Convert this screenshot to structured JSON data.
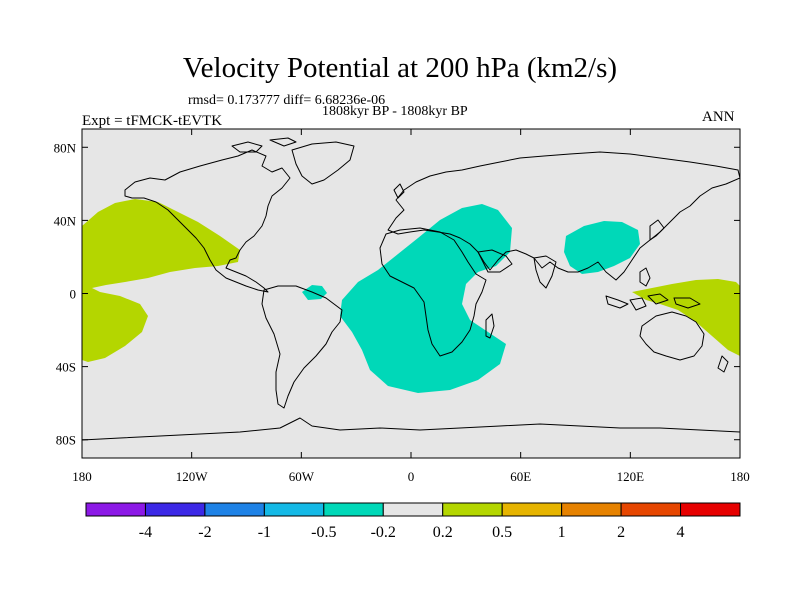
{
  "title": "Velocity Potential at 200 hPa (km2/s)",
  "stats": "rmsd= 0.173777 diff= 6.68236e-06",
  "period": "1808kyr BP - 1808kyr BP",
  "experiment": "Expt = tFMCK-tEVTK",
  "season": "ANN",
  "map": {
    "projection": "cylindrical-equidistant",
    "lon_range": [
      -180,
      180
    ],
    "lat_range": [
      -90,
      90
    ],
    "background_color": "#e6e6e6",
    "coastline_color": "#000000",
    "x_ticks": [
      {
        "lon": -180,
        "label": "180"
      },
      {
        "lon": -120,
        "label": "120W"
      },
      {
        "lon": -60,
        "label": "60W"
      },
      {
        "lon": 0,
        "label": "0"
      },
      {
        "lon": 60,
        "label": "60E"
      },
      {
        "lon": 120,
        "label": "120E"
      },
      {
        "lon": 180,
        "label": "180"
      }
    ],
    "y_ticks": [
      {
        "lat": 80,
        "label": "80N"
      },
      {
        "lat": 40,
        "label": "40N"
      },
      {
        "lat": 0,
        "label": "0"
      },
      {
        "lat": -40,
        "label": "40S"
      },
      {
        "lat": -80,
        "label": "80S"
      }
    ],
    "shaded_regions": [
      {
        "name": "central-pacific-positive",
        "bin": "0.2 to 0.5",
        "color": "#b4d600"
      },
      {
        "name": "atlantic-africa-negative",
        "bin": "-0.5 to -0.2",
        "color": "#00d8b8"
      },
      {
        "name": "east-asia-negative",
        "bin": "-0.5 to -0.2",
        "color": "#00d8b8"
      },
      {
        "name": "caribbean-negative",
        "bin": "-0.5 to -0.2",
        "color": "#00d8b8"
      },
      {
        "name": "western-pacific-positive",
        "bin": "0.2 to 0.5",
        "color": "#b4d600"
      }
    ]
  },
  "colorbar": {
    "colors": [
      "#8c19e6",
      "#3c28e6",
      "#1e82e6",
      "#14b9e6",
      "#00d8b8",
      "#e6e6e6",
      "#b4d600",
      "#e6b400",
      "#e68200",
      "#e64600",
      "#e60000"
    ],
    "labels": [
      "-4",
      "-2",
      "-1",
      "-0.5",
      "-0.2",
      "0.2",
      "0.5",
      "1",
      "2",
      "4"
    ]
  }
}
